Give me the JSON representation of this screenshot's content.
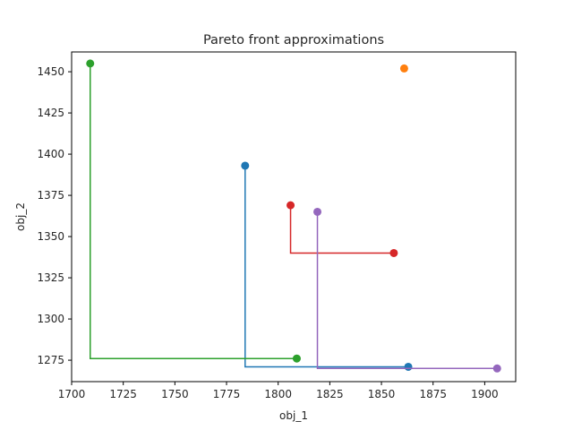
{
  "chart_data": {
    "type": "line",
    "title": "Pareto front approximations",
    "xlabel": "obj_1",
    "ylabel": "obj_2",
    "xlim": [
      1700,
      1915
    ],
    "ylim": [
      1262,
      1462
    ],
    "xticks": [
      1700,
      1725,
      1750,
      1775,
      1800,
      1825,
      1850,
      1875,
      1900
    ],
    "yticks": [
      1275,
      1300,
      1325,
      1350,
      1375,
      1400,
      1425,
      1450
    ],
    "grid": false,
    "series": [
      {
        "color": "#1f77b4",
        "points": [
          [
            1784,
            1393
          ],
          [
            1863,
            1271
          ]
        ],
        "step": true
      },
      {
        "color": "#ff7f0e",
        "points": [
          [
            1861,
            1452
          ]
        ],
        "step": true
      },
      {
        "color": "#2ca02c",
        "points": [
          [
            1709,
            1455
          ],
          [
            1809,
            1276
          ]
        ],
        "step": true
      },
      {
        "color": "#d62728",
        "points": [
          [
            1806,
            1369
          ],
          [
            1856,
            1340
          ]
        ],
        "step": true
      },
      {
        "color": "#9467bd",
        "points": [
          [
            1819,
            1365
          ],
          [
            1906,
            1270
          ]
        ],
        "step": true
      }
    ]
  }
}
